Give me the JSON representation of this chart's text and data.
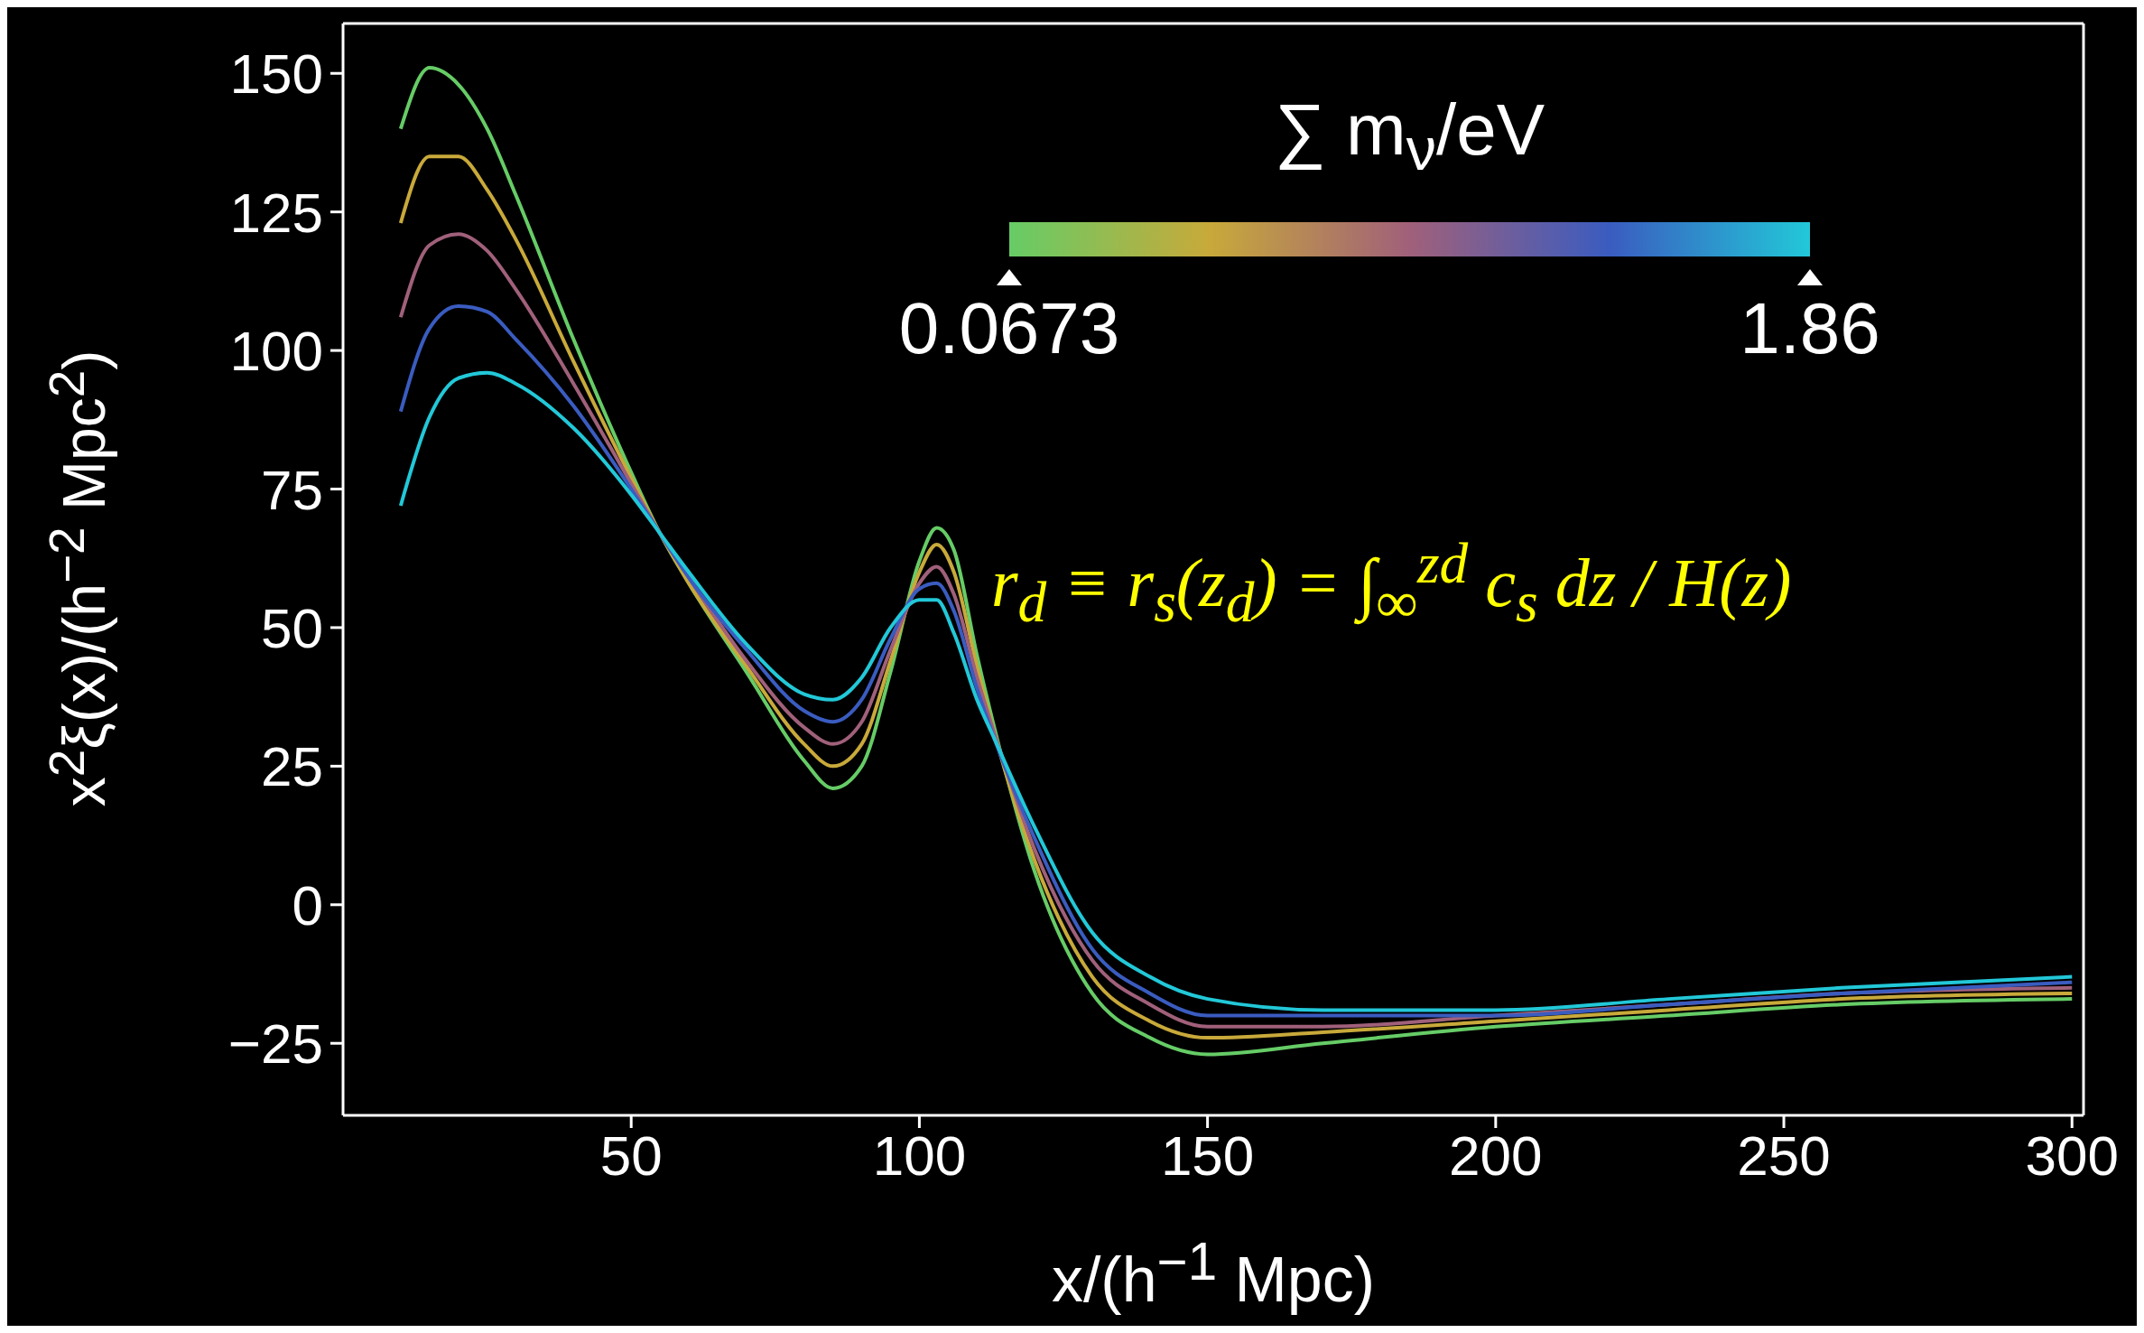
{
  "chart_data": {
    "type": "line",
    "xlabel": "x/(h$^{−1}$ Mpc)",
    "ylabel": "x$^{2}$ξ(x)/(h$^{−2}$ Mpc$^{2}$)",
    "clabel": "∑ m$_{ν}$/eV",
    "annotations": [
      "r$_{d}$ ≡ r$_{s}$(z$_{d}$) = ∫$_{∞}$$^{zd}$ c$_{s}$ dz / H(z)",
      "0.0673",
      "1.86"
    ],
    "xlim": [
      0,
      302
    ],
    "xticks": [
      50,
      100,
      150,
      200,
      250,
      300
    ],
    "ylim": [
      -38,
      159
    ],
    "yticks": [
      -25,
      0,
      25,
      50,
      75,
      100,
      125,
      150
    ],
    "x": [
      10,
      15,
      20,
      25,
      30,
      40,
      50,
      55,
      60,
      70,
      80,
      85,
      90,
      95,
      100,
      103,
      106,
      110,
      113,
      120,
      130,
      140,
      150,
      170,
      200,
      230,
      260,
      300
    ],
    "series": [
      {
        "color": "#66cc66",
        "values": [
          140,
          151,
          148,
          140,
          128,
          102,
          78,
          67,
          58,
          42,
          26,
          21,
          25,
          42,
          62,
          68,
          64,
          45,
          32,
          6,
          -16,
          -24,
          -27,
          -25,
          -22,
          -20,
          -18,
          -17
        ]
      },
      {
        "color": "#c8a93a",
        "values": [
          123,
          135,
          135,
          129,
          120,
          98,
          77,
          67,
          58,
          43,
          29,
          25,
          29,
          44,
          60,
          65,
          60,
          43,
          31,
          8,
          -13,
          -21,
          -24,
          -23,
          -21,
          -19,
          -17,
          -16
        ]
      },
      {
        "color": "#a0607a",
        "values": [
          106,
          119,
          121,
          118,
          111,
          94,
          76,
          67,
          59,
          44,
          32,
          29,
          33,
          46,
          58,
          61,
          56,
          41,
          31,
          10,
          -10,
          -18,
          -22,
          -22,
          -20,
          -18,
          -16,
          -15
        ]
      },
      {
        "color": "#3a5cc0",
        "values": [
          89,
          104,
          108,
          107,
          102,
          90,
          75,
          67,
          59,
          46,
          35,
          33,
          37,
          48,
          57,
          58,
          53,
          39,
          30,
          12,
          -8,
          -16,
          -20,
          -20,
          -20,
          -18,
          -16,
          -14
        ]
      },
      {
        "color": "#22c8d8",
        "values": [
          72,
          88,
          95,
          96,
          94,
          86,
          74,
          67,
          60,
          47,
          38,
          37,
          41,
          50,
          55,
          55,
          49,
          37,
          30,
          14,
          -5,
          -13,
          -17,
          -19,
          -19,
          -17,
          -15,
          -13
        ]
      }
    ]
  }
}
